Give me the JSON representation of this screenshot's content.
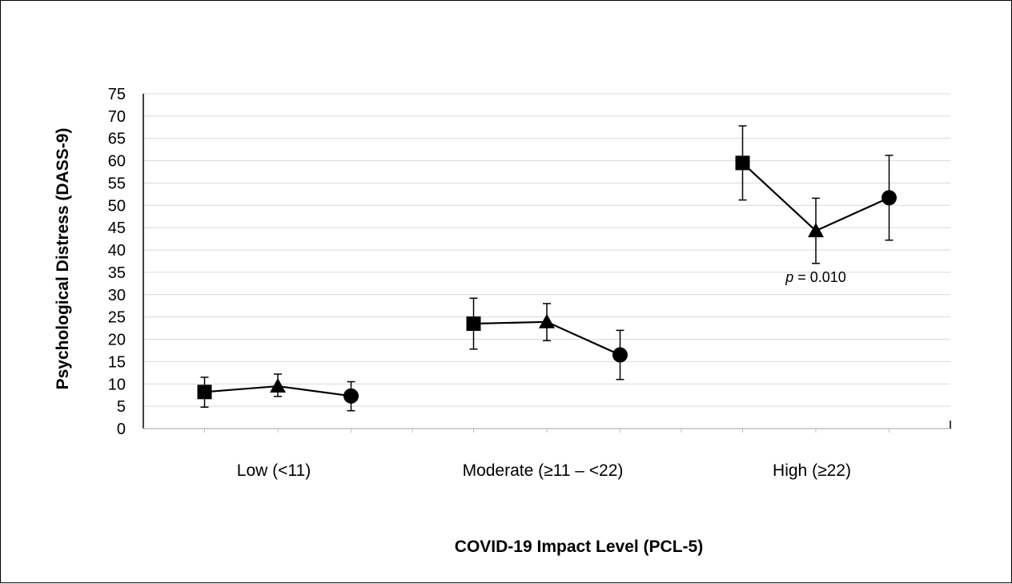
{
  "chart_data": {
    "type": "line",
    "title": "",
    "xlabel": "COVID-19 Impact Level (PCL-5)",
    "ylabel": "Psychological Distress (DASS-9)",
    "ylim": [
      0,
      75
    ],
    "yticks": [
      0,
      5,
      10,
      15,
      20,
      25,
      30,
      35,
      40,
      45,
      50,
      55,
      60,
      65,
      70,
      75
    ],
    "grid": true,
    "legend": "none",
    "categories": [
      "Low (<11)",
      "Moderate (≥11 – <22)",
      "High (≥22)"
    ],
    "groups": [
      {
        "category": "Low (<11)",
        "points": [
          {
            "marker": "square",
            "value": 8.2,
            "err_low": 4.8,
            "err_high": 11.5
          },
          {
            "marker": "triangle",
            "value": 9.5,
            "err_low": 7.2,
            "err_high": 12.2
          },
          {
            "marker": "circle",
            "value": 7.3,
            "err_low": 4.0,
            "err_high": 10.5
          }
        ]
      },
      {
        "category": "Moderate (≥11 – <22)",
        "points": [
          {
            "marker": "square",
            "value": 23.5,
            "err_low": 17.8,
            "err_high": 29.2
          },
          {
            "marker": "triangle",
            "value": 23.9,
            "err_low": 19.7,
            "err_high": 28.0
          },
          {
            "marker": "circle",
            "value": 16.5,
            "err_low": 11.0,
            "err_high": 22.0
          }
        ]
      },
      {
        "category": "High (≥22)",
        "points": [
          {
            "marker": "square",
            "value": 59.5,
            "err_low": 51.2,
            "err_high": 67.8
          },
          {
            "marker": "triangle",
            "value": 44.3,
            "err_low": 37.0,
            "err_high": 51.6
          },
          {
            "marker": "circle",
            "value": 51.7,
            "err_low": 42.2,
            "err_high": 61.2
          }
        ]
      }
    ],
    "annotations": [
      {
        "italic_part": "p",
        "text": " = 0.010",
        "group": "High (≥22)"
      }
    ]
  }
}
